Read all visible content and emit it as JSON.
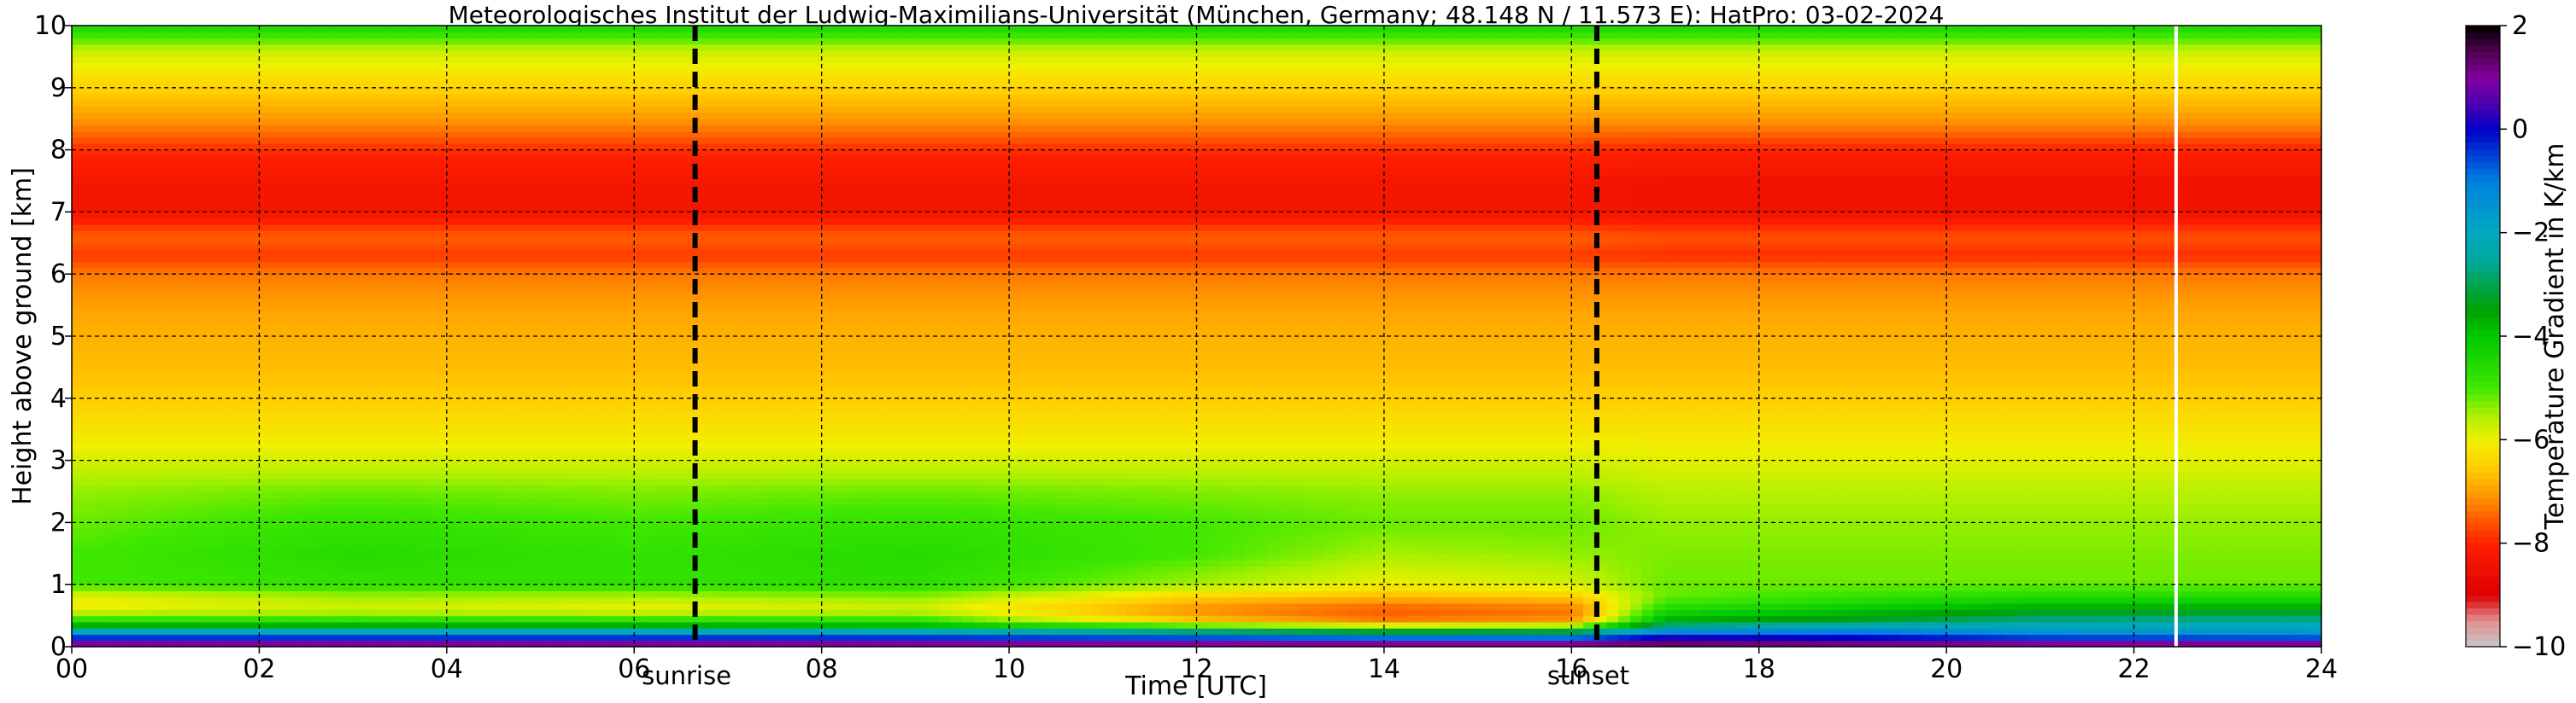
{
  "chart_data": {
    "type": "heatmap",
    "title": "Meteorologisches Institut der Ludwig-Maximilians-Universität (München, Germany; 48.148 N / 11.573 E):    HatPro: 03-02-2024",
    "xlabel": "Time [UTC]",
    "ylabel": "Height above ground [km]",
    "xlim": [
      0,
      24
    ],
    "ylim": [
      0,
      10
    ],
    "x_ticks": [
      {
        "value": 0,
        "label": "00"
      },
      {
        "value": 2,
        "label": "02"
      },
      {
        "value": 4,
        "label": "04"
      },
      {
        "value": 6,
        "label": "06"
      },
      {
        "value": 8,
        "label": "08"
      },
      {
        "value": 10,
        "label": "10"
      },
      {
        "value": 12,
        "label": "12"
      },
      {
        "value": 14,
        "label": "14"
      },
      {
        "value": 16,
        "label": "16"
      },
      {
        "value": 18,
        "label": "18"
      },
      {
        "value": 20,
        "label": "20"
      },
      {
        "value": 22,
        "label": "22"
      },
      {
        "value": 24,
        "label": "24"
      }
    ],
    "y_ticks": [
      {
        "value": 0,
        "label": "0"
      },
      {
        "value": 1,
        "label": "1"
      },
      {
        "value": 2,
        "label": "2"
      },
      {
        "value": 3,
        "label": "3"
      },
      {
        "value": 4,
        "label": "4"
      },
      {
        "value": 5,
        "label": "5"
      },
      {
        "value": 6,
        "label": "6"
      },
      {
        "value": 7,
        "label": "7"
      },
      {
        "value": 8,
        "label": "8"
      },
      {
        "value": 9,
        "label": "9"
      },
      {
        "value": 10,
        "label": "10"
      }
    ],
    "grid": true,
    "colorbar": {
      "label": "Temperature Gradient in K/km",
      "range": [
        -10,
        2
      ],
      "ticks": [
        {
          "value": 2,
          "label": "2"
        },
        {
          "value": 0,
          "label": "0"
        },
        {
          "value": -2,
          "label": "−2"
        },
        {
          "value": -4,
          "label": "−4"
        },
        {
          "value": -6,
          "label": "−6"
        },
        {
          "value": -8,
          "label": "−8"
        },
        {
          "value": -10,
          "label": "−10"
        }
      ],
      "stops": [
        {
          "value": -10,
          "color": "#c8c8c8"
        },
        {
          "value": -9.5,
          "color": "#e09090"
        },
        {
          "value": -9,
          "color": "#dd0000"
        },
        {
          "value": -8,
          "color": "#ff2000"
        },
        {
          "value": -7.5,
          "color": "#ff6000"
        },
        {
          "value": -7,
          "color": "#ffa000"
        },
        {
          "value": -6.5,
          "color": "#ffd000"
        },
        {
          "value": -6,
          "color": "#f0f000"
        },
        {
          "value": -5.5,
          "color": "#a8f000"
        },
        {
          "value": -5,
          "color": "#40e800"
        },
        {
          "value": -4,
          "color": "#00c800"
        },
        {
          "value": -3.5,
          "color": "#00a000"
        },
        {
          "value": -2.5,
          "color": "#00a8a0"
        },
        {
          "value": -2,
          "color": "#00a8c0"
        },
        {
          "value": -1,
          "color": "#0080e0"
        },
        {
          "value": 0,
          "color": "#0000c8"
        },
        {
          "value": 0.5,
          "color": "#5000b0"
        },
        {
          "value": 1,
          "color": "#8000a0"
        },
        {
          "value": 1.5,
          "color": "#500050"
        },
        {
          "value": 2,
          "color": "#000000"
        }
      ]
    },
    "events": [
      {
        "time": 6.65,
        "label": "sunrise"
      },
      {
        "time": 16.27,
        "label": "sunset"
      }
    ],
    "data_gaps": [
      22.45
    ],
    "profile_heights": [
      0,
      0.1,
      0.2,
      0.3,
      0.4,
      0.6,
      0.8,
      1,
      1.5,
      2,
      2.5,
      3,
      3.5,
      4,
      4.5,
      5,
      5.5,
      6,
      6.3,
      6.6,
      7,
      7.5,
      8,
      8.4,
      8.8,
      9.2,
      9.6,
      10
    ],
    "profiles": [
      {
        "time": 0,
        "values": [
          1.8,
          0.2,
          -1,
          -3,
          -4.5,
          -6,
          -6,
          -5,
          -5,
          -5.2,
          -5.4,
          -5.8,
          -6.2,
          -6.5,
          -6.7,
          -6.8,
          -7,
          -7.3,
          -7.8,
          -7.5,
          -8.3,
          -8.3,
          -7.9,
          -7.2,
          -6.7,
          -6.2,
          -5.7,
          -4.4
        ]
      },
      {
        "time": 3,
        "values": [
          1.8,
          0.2,
          -1,
          -3,
          -4.5,
          -5.8,
          -5.5,
          -4.8,
          -4.6,
          -4.8,
          -5.2,
          -5.8,
          -6.2,
          -6.5,
          -6.7,
          -6.8,
          -7,
          -7.3,
          -7.8,
          -7.5,
          -8.3,
          -8.3,
          -7.9,
          -7.2,
          -6.7,
          -6.2,
          -5.7,
          -4.4
        ]
      },
      {
        "time": 6,
        "values": [
          1.8,
          0.2,
          -1,
          -3,
          -4.5,
          -6,
          -5.6,
          -4.8,
          -4.8,
          -5,
          -5.3,
          -5.8,
          -6.2,
          -6.5,
          -6.7,
          -6.8,
          -7,
          -7.3,
          -7.8,
          -7.5,
          -8.3,
          -8.3,
          -7.9,
          -7.2,
          -6.7,
          -6.2,
          -5.7,
          -4.4
        ]
      },
      {
        "time": 9,
        "values": [
          1.8,
          0.2,
          -1,
          -3.2,
          -4.6,
          -5.8,
          -5.4,
          -4.7,
          -4.6,
          -4.8,
          -5.2,
          -5.8,
          -6.2,
          -6.5,
          -6.7,
          -6.8,
          -7,
          -7.3,
          -7.8,
          -7.5,
          -8.3,
          -8.3,
          -7.9,
          -7.2,
          -6.7,
          -6.2,
          -5.7,
          -4.4
        ]
      },
      {
        "time": 12,
        "values": [
          1.8,
          0.2,
          -1.5,
          -4,
          -6.5,
          -7.2,
          -6.5,
          -5.5,
          -5,
          -5,
          -5.3,
          -5.8,
          -6.2,
          -6.5,
          -6.7,
          -6.8,
          -7,
          -7.3,
          -7.8,
          -7.5,
          -8.3,
          -8.3,
          -7.9,
          -7.2,
          -6.7,
          -6.2,
          -5.7,
          -4.4
        ]
      },
      {
        "time": 14,
        "values": [
          1.8,
          0.2,
          -2,
          -4.5,
          -7.2,
          -7.6,
          -6.8,
          -6,
          -5.5,
          -5.2,
          -5.4,
          -5.8,
          -6.2,
          -6.5,
          -6.7,
          -6.8,
          -7,
          -7.3,
          -7.8,
          -7.5,
          -8.3,
          -8.3,
          -7.9,
          -7.2,
          -6.7,
          -6.2,
          -5.7,
          -4.4
        ]
      },
      {
        "time": 16,
        "values": [
          1.8,
          0.2,
          -2,
          -4.3,
          -7,
          -7.4,
          -6.6,
          -5.8,
          -5.4,
          -5.2,
          -5.4,
          -5.8,
          -6.2,
          -6.5,
          -6.7,
          -6.8,
          -7,
          -7.3,
          -7.8,
          -7.5,
          -8.3,
          -8.3,
          -7.9,
          -7.2,
          -6.7,
          -6.2,
          -5.7,
          -4.4
        ]
      },
      {
        "time": 17,
        "values": [
          1.8,
          0.8,
          -0.5,
          -2,
          -3.5,
          -4.5,
          -5.2,
          -5.2,
          -5.3,
          -5.4,
          -5.6,
          -5.9,
          -6.2,
          -6.5,
          -6.7,
          -6.8,
          -7,
          -7.3,
          -7.9,
          -7.6,
          -8.4,
          -8.4,
          -8,
          -7.2,
          -6.7,
          -6.2,
          -5.7,
          -4.4
        ]
      },
      {
        "time": 19,
        "values": [
          1.8,
          0.5,
          -0.5,
          -1.5,
          -3.2,
          -4,
          -4.8,
          -5.2,
          -5.3,
          -5.4,
          -5.6,
          -5.9,
          -6.2,
          -6.5,
          -6.7,
          -6.8,
          -7,
          -7.3,
          -7.9,
          -7.6,
          -8.4,
          -8.4,
          -8,
          -7.2,
          -6.7,
          -6.2,
          -5.7,
          -4.4
        ]
      },
      {
        "time": 21,
        "values": [
          1.8,
          0.2,
          -1.2,
          -1.8,
          -2.5,
          -3.5,
          -4.5,
          -5.2,
          -5.3,
          -5.4,
          -5.6,
          -5.9,
          -6.2,
          -6.5,
          -6.7,
          -6.8,
          -7,
          -7.3,
          -7.9,
          -7.6,
          -8.4,
          -8.4,
          -8,
          -7.2,
          -6.7,
          -6.2,
          -5.7,
          -4.4
        ]
      },
      {
        "time": 24,
        "values": [
          1.8,
          0.2,
          -1.5,
          -1.8,
          -2.4,
          -3.5,
          -4.5,
          -5.2,
          -5.3,
          -5.4,
          -5.6,
          -5.9,
          -6.2,
          -6.5,
          -6.7,
          -6.8,
          -7,
          -7.3,
          -7.9,
          -7.6,
          -8.4,
          -8.4,
          -8,
          -7.2,
          -6.7,
          -6.2,
          -5.7,
          -4.4
        ]
      }
    ]
  }
}
